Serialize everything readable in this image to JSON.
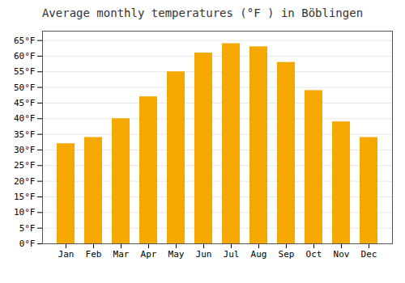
{
  "chart_data": {
    "type": "bar",
    "title": "Average monthly temperatures (°F ) in Böblingen",
    "categories": [
      "Jan",
      "Feb",
      "Mar",
      "Apr",
      "May",
      "Jun",
      "Jul",
      "Aug",
      "Sep",
      "Oct",
      "Nov",
      "Dec"
    ],
    "values": [
      32,
      34,
      40,
      47,
      55,
      61,
      64,
      63,
      58,
      49,
      39,
      34
    ],
    "color": "#F5A800",
    "ylim": [
      0,
      68
    ],
    "yticks": [
      {
        "value": 0,
        "label": "0°F"
      },
      {
        "value": 5,
        "label": "5°F"
      },
      {
        "value": 10,
        "label": "10°F"
      },
      {
        "value": 15,
        "label": "15°F"
      },
      {
        "value": 20,
        "label": "20°F"
      },
      {
        "value": 25,
        "label": "25°F"
      },
      {
        "value": 30,
        "label": "30°F"
      },
      {
        "value": 35,
        "label": "35°F"
      },
      {
        "value": 40,
        "label": "40°F"
      },
      {
        "value": 45,
        "label": "45°F"
      },
      {
        "value": 50,
        "label": "50°F"
      },
      {
        "value": 55,
        "label": "55°F"
      },
      {
        "value": 60,
        "label": "60°F"
      },
      {
        "value": 65,
        "label": "65°F"
      }
    ],
    "grid": true
  }
}
